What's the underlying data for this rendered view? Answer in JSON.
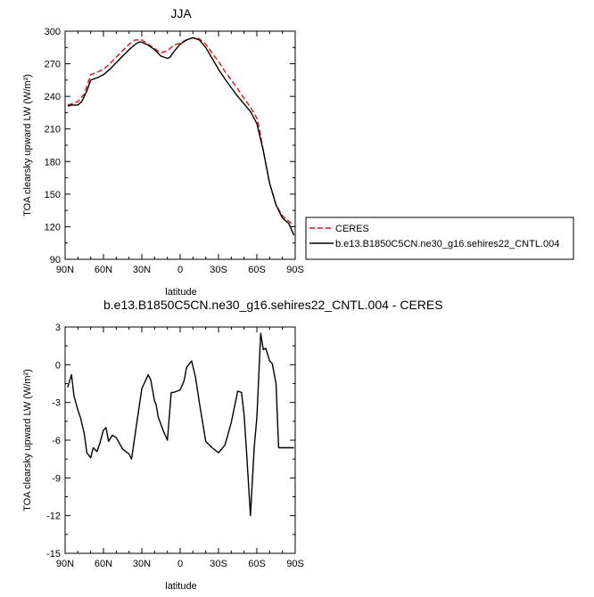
{
  "chart_data": [
    {
      "type": "line",
      "title": "JJA",
      "xlabel": "latitude",
      "ylabel": "TOA clearsky upward LW (W/m²)",
      "xlim": [
        90,
        -90
      ],
      "ylim": [
        90,
        300
      ],
      "yticks": [
        90,
        120,
        150,
        180,
        210,
        240,
        270,
        300
      ],
      "xtick_labels": [
        "90N",
        "60N",
        "30N",
        "0",
        "30S",
        "60S",
        "90S"
      ],
      "ytick_labels": [
        "90",
        "120",
        "150",
        "180",
        "210",
        "240",
        "270",
        "300"
      ],
      "legend": "right",
      "series": [
        {
          "name": "CERES",
          "color": "#e01010",
          "dash": true,
          "x": [
            88,
            85,
            80,
            75,
            70,
            65,
            60,
            55,
            50,
            45,
            40,
            35,
            30,
            25,
            20,
            15,
            10,
            5,
            0,
            -5,
            -10,
            -15,
            -20,
            -25,
            -30,
            -35,
            -40,
            -45,
            -50,
            -55,
            -60,
            -62,
            -65,
            -70,
            -75,
            -80,
            -85,
            -89
          ],
          "y": [
            232,
            233,
            235,
            242,
            260,
            262,
            265,
            270,
            276,
            282,
            288,
            292,
            292,
            288,
            284,
            280,
            282,
            287,
            289,
            292,
            294,
            293,
            288,
            280,
            272,
            263,
            255,
            247,
            238,
            230,
            220,
            210,
            190,
            160,
            140,
            130,
            125,
            121
          ]
        },
        {
          "name": "b.e13.B1850C5CN.ne30_g16.sehires22_CNTL.004",
          "color": "#000000",
          "dash": false,
          "x": [
            88,
            85,
            80,
            77,
            75,
            73,
            70,
            65,
            60,
            55,
            50,
            45,
            40,
            35,
            32,
            30,
            25,
            20,
            15,
            10,
            8,
            5,
            0,
            -5,
            -10,
            -15,
            -20,
            -25,
            -30,
            -35,
            -40,
            -45,
            -50,
            -55,
            -60,
            -63,
            -65,
            -70,
            -75,
            -80,
            -85,
            -89
          ],
          "y": [
            231,
            232,
            232,
            235,
            240,
            245,
            255,
            257,
            260,
            265,
            271,
            277,
            283,
            288,
            290,
            290,
            287,
            283,
            277,
            275,
            276,
            281,
            288,
            292,
            294,
            292,
            285,
            275,
            265,
            256,
            248,
            240,
            233,
            226,
            215,
            200,
            190,
            160,
            140,
            128,
            123,
            112
          ]
        }
      ]
    },
    {
      "type": "line",
      "title": "b.e13.B1850C5CN.ne30_g16.sehires22_CNTL.004 - CERES",
      "xlabel": "latitude",
      "ylabel": "TOA clearsky upward LW (W/m²)",
      "xlim": [
        90,
        -90
      ],
      "ylim": [
        -15,
        3
      ],
      "yticks": [
        -15,
        -12,
        -9,
        -6,
        -3,
        0,
        3
      ],
      "xtick_labels": [
        "90N",
        "60N",
        "30N",
        "0",
        "30S",
        "60S",
        "90S"
      ],
      "ytick_labels": [
        "-15",
        "-12",
        "-9",
        "-6",
        "-3",
        "0",
        "3"
      ],
      "series": [
        {
          "name": "",
          "color": "#000000",
          "dash": false,
          "x": [
            88,
            85,
            83,
            80,
            78,
            75,
            73,
            70,
            68,
            65,
            63,
            60,
            58,
            56,
            53,
            50,
            45,
            40,
            38,
            35,
            30,
            25,
            23,
            20,
            19,
            17,
            13,
            10,
            7,
            5,
            0,
            -3,
            -5,
            -9,
            -12,
            -15,
            -20,
            -25,
            -30,
            -35,
            -40,
            -45,
            -48,
            -50,
            -52,
            -55,
            -58,
            -60,
            -63,
            -65,
            -67,
            -70,
            -72,
            -75,
            -77,
            -80,
            -82,
            -85,
            -89
          ],
          "y": [
            -1.8,
            -0.8,
            -2.5,
            -3.6,
            -4.2,
            -5.5,
            -7.0,
            -7.4,
            -6.6,
            -6.9,
            -6.3,
            -5.2,
            -5.0,
            -6.1,
            -5.6,
            -5.8,
            -6.7,
            -7.1,
            -7.5,
            -5.4,
            -1.9,
            -0.8,
            -1.2,
            -2.9,
            -3.1,
            -4.2,
            -5.3,
            -6.0,
            -2.2,
            -2.2,
            -2.0,
            -1.3,
            -0.2,
            0.3,
            -1.0,
            -3.0,
            -6.1,
            -6.6,
            -7.0,
            -6.4,
            -4.6,
            -2.1,
            -2.2,
            -4.0,
            -7.0,
            -12.0,
            -6.5,
            -4.2,
            2.5,
            1.2,
            1.3,
            0.3,
            0.1,
            -1.5,
            -6.6,
            -6.6,
            -6.6,
            -6.6,
            -6.6
          ]
        }
      ]
    }
  ]
}
